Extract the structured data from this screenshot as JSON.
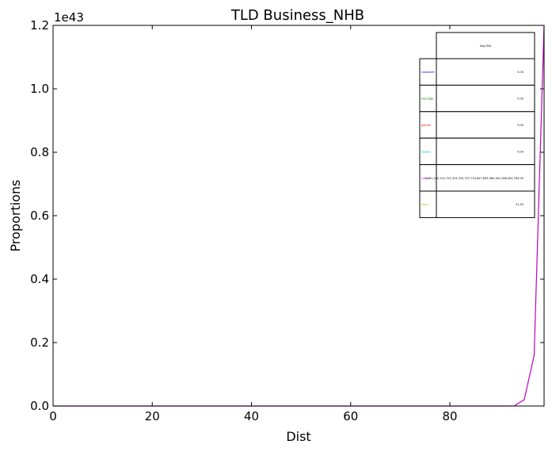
{
  "chart_data": {
    "type": "line",
    "title": "TLD Business_NHB",
    "xlabel": "Dist",
    "ylabel": "Proportions",
    "y_offset_label": "1e43",
    "xlim": [
      0,
      99
    ],
    "ylim": [
      0,
      1.2
    ],
    "y_scale_exponent": 43,
    "x_ticks": [
      0,
      20,
      40,
      60,
      80
    ],
    "x_tick_labels": [
      "0",
      "20",
      "40",
      "60",
      "80"
    ],
    "y_ticks": [
      0,
      0.2,
      0.4,
      0.6,
      0.8,
      1.0,
      1.2
    ],
    "y_tick_labels": [
      "0.0",
      "0.2",
      "0.4",
      "0.6",
      "0.8",
      "1.0",
      "1.2"
    ],
    "grid": false,
    "series": [
      {
        "name": "",
        "color": "#bf00bf",
        "x": [
          0,
          20,
          40,
          60,
          80,
          90,
          92,
          93,
          95,
          97,
          99
        ],
        "y": [
          0,
          0,
          0,
          0,
          0,
          0,
          0,
          0.0005,
          0.02,
          0.16,
          1.2
        ]
      }
    ],
    "table": {
      "header": "Avg Dist",
      "rows": [
        {
          "label": "capsweet",
          "color": "#0000ff",
          "value": "0.00"
        },
        {
          "label": "ovpridge",
          "color": "#008000",
          "value": "0.00"
        },
        {
          "label": "garnet",
          "color": "#ff0000",
          "value": "0.00"
        },
        {
          "label": "topsee",
          "color": "#00bfbf",
          "value": "0.00"
        },
        {
          "label": "custs",
          "color": "#bf00bf",
          "value": "1,361,180,141,751,324,325,757,734,847,839,984,361,286,404,764.00"
        },
        {
          "label": "plans",
          "color": "#bfbf00",
          "value": "31.55"
        }
      ]
    }
  }
}
